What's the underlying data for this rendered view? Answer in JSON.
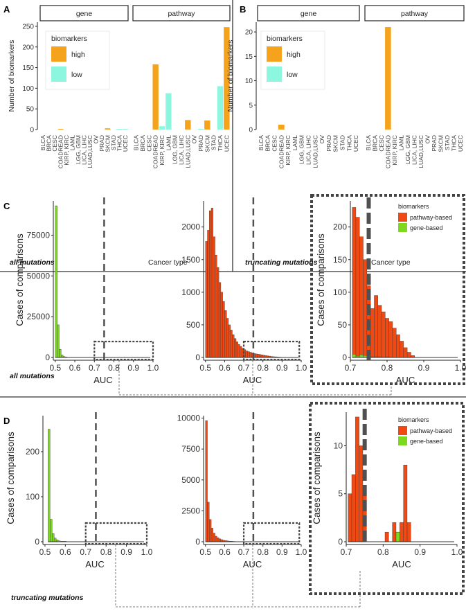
{
  "colors": {
    "high": "#f5a31c",
    "low": "#8cf7de",
    "pathway": "#ef4a14",
    "gene": "#7dd81f",
    "dash": "#505050",
    "axis": "#222222"
  },
  "chart_data": [
    {
      "id": "A",
      "type": "bar",
      "panel_letter": "A",
      "caption": "all mutations",
      "xlabel": "Cancer type",
      "ylabel": "Number of biomarkers",
      "ylim": [
        0,
        260
      ],
      "yticks": [
        0,
        50,
        100,
        150,
        200,
        250
      ],
      "facets": [
        "gene",
        "pathway"
      ],
      "categories": [
        "BLCA",
        "BRCA",
        "CESC",
        "COADREAD",
        "KIRP, KIRC",
        "LAML",
        "LGG, GBM",
        "LICA, LIHC",
        "LUAD,LUSC",
        "OV",
        "PRAD",
        "SKCM",
        "STAD",
        "THCA",
        "UCEC"
      ],
      "legend": {
        "title": "biomarkers",
        "entries": [
          "high",
          "low"
        ]
      },
      "series": [
        {
          "name": "high",
          "facet": "gene",
          "values": [
            0,
            0,
            0,
            1,
            0,
            0,
            0,
            0,
            0,
            0,
            0,
            3,
            0,
            1,
            1
          ]
        },
        {
          "name": "low",
          "facet": "gene",
          "values": [
            0,
            0,
            0,
            0,
            0,
            0,
            0,
            0,
            0,
            0,
            0,
            0,
            0,
            1,
            1
          ]
        },
        {
          "name": "high",
          "facet": "pathway",
          "values": [
            0,
            0,
            0,
            158,
            0,
            0,
            0,
            0,
            23,
            0,
            0,
            22,
            0,
            0,
            248
          ]
        },
        {
          "name": "low",
          "facet": "pathway",
          "values": [
            0,
            0,
            0,
            0,
            8,
            88,
            0,
            0,
            0,
            0,
            1,
            0,
            0,
            105,
            0
          ]
        }
      ]
    },
    {
      "id": "B",
      "type": "bar",
      "panel_letter": "B",
      "caption": "truncating mutations",
      "xlabel": "Cancer type",
      "ylabel": "Number of biomarkers",
      "ylim": [
        0,
        22
      ],
      "yticks": [
        0,
        5,
        10,
        15,
        20
      ],
      "facets": [
        "gene",
        "pathway"
      ],
      "categories": [
        "BLCA",
        "BRCA",
        "CESC",
        "COADREAD",
        "KIRP, KIRC",
        "LAML",
        "LGG, GBM",
        "LICA, LIHC",
        "LUAD,LUSC",
        "OV",
        "PRAD",
        "SKCM",
        "STAD",
        "THCA",
        "UCEC"
      ],
      "legend": {
        "title": "biomarkers",
        "entries": [
          "high",
          "low"
        ]
      },
      "series": [
        {
          "name": "high",
          "facet": "gene",
          "values": [
            0,
            0,
            0,
            1,
            0,
            0,
            0,
            0,
            0,
            0,
            0,
            0,
            0,
            0,
            0
          ]
        },
        {
          "name": "low",
          "facet": "gene",
          "values": [
            0,
            0,
            0,
            0,
            0,
            0,
            0,
            0,
            0,
            0,
            0,
            0,
            0,
            0,
            0
          ]
        },
        {
          "name": "high",
          "facet": "pathway",
          "values": [
            0,
            0,
            0,
            21,
            0,
            0,
            0,
            0,
            0,
            0,
            0,
            0,
            0,
            0,
            0
          ]
        },
        {
          "name": "low",
          "facet": "pathway",
          "values": [
            0,
            0,
            0,
            0,
            0,
            0,
            0,
            0,
            0,
            0,
            0,
            0,
            0,
            0,
            0
          ]
        }
      ]
    },
    {
      "id": "C1",
      "type": "bar",
      "panel_letter": "C",
      "caption": "all mutations",
      "series_name": "gene",
      "xlabel": "AUC",
      "ylabel": "Cases of comparisons",
      "xlim": [
        0.49,
        1.0
      ],
      "ylim": [
        0,
        96000
      ],
      "xticks": [
        "0.5",
        "0.6",
        "0.7",
        "0.8",
        "0.9",
        "1.0"
      ],
      "yticks": [
        0,
        25000,
        50000,
        75000
      ],
      "cutoff": 0.75,
      "zoom_box": [
        0.7,
        1.0
      ],
      "bin_start": 0.5,
      "bin_width": 0.01,
      "values": [
        93000,
        20000,
        5000,
        1500,
        600,
        250,
        120,
        60,
        30,
        15
      ]
    },
    {
      "id": "C2",
      "type": "bar",
      "series_name": "pathway",
      "xlabel": "AUC",
      "ylabel": "",
      "xlim": [
        0.49,
        1.0
      ],
      "ylim": [
        0,
        2400
      ],
      "xticks": [
        "0.5",
        "0.6",
        "0.7",
        "0.8",
        "0.9",
        "1.0"
      ],
      "yticks": [
        0,
        500,
        1000,
        1500,
        2000
      ],
      "cutoff": 0.75,
      "zoom_box": [
        0.7,
        0.99
      ],
      "bin_start": 0.5,
      "bin_width": 0.01,
      "values": [
        1780,
        1950,
        2250,
        2290,
        1850,
        1570,
        1380,
        1150,
        1000,
        860,
        720,
        600,
        500,
        420,
        350,
        290,
        240,
        200,
        170,
        140,
        120,
        100,
        90,
        80,
        70,
        60,
        55,
        50,
        45,
        40,
        35,
        30,
        25,
        20,
        15,
        12,
        10,
        8,
        6,
        4
      ]
    },
    {
      "id": "C3",
      "type": "bar",
      "xlabel": "AUC",
      "ylabel": "Cases of comparisons",
      "xlim": [
        0.7,
        1.0
      ],
      "ylim": [
        0,
        240
      ],
      "xticks": [
        "0.7",
        "0.8",
        "0.9",
        "1.0"
      ],
      "yticks": [
        0,
        50,
        100,
        150,
        200
      ],
      "cutoff": 0.75,
      "legend": {
        "title": "biomarkers",
        "entries": [
          "pathway-based",
          "gene-based"
        ]
      },
      "bin_start": 0.705,
      "bin_width": 0.01,
      "series": [
        {
          "name": "pathway-based",
          "values": [
            230,
            215,
            185,
            150,
            110,
            75,
            95,
            80,
            70,
            60,
            55,
            45,
            35,
            25,
            15,
            8,
            3
          ]
        },
        {
          "name": "gene-based",
          "values": [
            5,
            2,
            4,
            3,
            0,
            1,
            1,
            1,
            0,
            1,
            0,
            0,
            0,
            0,
            0,
            0,
            0
          ]
        }
      ]
    },
    {
      "id": "D1",
      "type": "bar",
      "panel_letter": "D",
      "caption": "truncating mutations",
      "series_name": "gene",
      "xlabel": "AUC",
      "ylabel": "Cases of comparisons",
      "xlim": [
        0.49,
        1.0
      ],
      "ylim": [
        0,
        280
      ],
      "xticks": [
        "0.5",
        "0.6",
        "0.7",
        "0.8",
        "0.9",
        "1.0"
      ],
      "yticks": [
        0,
        100,
        200
      ],
      "cutoff": 0.75,
      "zoom_box": [
        0.7,
        1.0
      ],
      "bin_start": 0.515,
      "bin_width": 0.01,
      "values": [
        250,
        50,
        18,
        8,
        4,
        2,
        1,
        1,
        1
      ]
    },
    {
      "id": "D2",
      "type": "bar",
      "series_name": "pathway",
      "xlabel": "AUC",
      "ylabel": "",
      "xlim": [
        0.49,
        1.0
      ],
      "ylim": [
        0,
        10200
      ],
      "xticks": [
        "0.5",
        "0.6",
        "0.7",
        "0.8",
        "0.9",
        "1.0"
      ],
      "yticks": [
        0,
        2500,
        5000,
        7500,
        10000
      ],
      "cutoff": 0.75,
      "zoom_box": [
        0.7,
        0.99
      ],
      "bin_start": 0.5,
      "bin_width": 0.01,
      "values": [
        9800,
        3200,
        1800,
        1100,
        700,
        450,
        320,
        230,
        170,
        120,
        90,
        70,
        50,
        40,
        30,
        20,
        15,
        10,
        8,
        6,
        4,
        3
      ]
    },
    {
      "id": "D3",
      "type": "bar",
      "xlabel": "AUC",
      "ylabel": "Cases of comparisons",
      "xlim": [
        0.7,
        1.0
      ],
      "ylim": [
        0,
        13.5
      ],
      "xticks": [
        "0.7",
        "0.8",
        "0.9",
        "1.0"
      ],
      "yticks": [
        0,
        5,
        10
      ],
      "cutoff": 0.75,
      "legend": {
        "title": "biomarkers",
        "entries": [
          "pathway-based",
          "gene-based"
        ]
      },
      "bin_start": 0.705,
      "bin_width": 0.01,
      "series": [
        {
          "name": "pathway-based",
          "values": [
            5,
            7,
            13,
            10,
            5,
            0,
            0,
            0,
            0,
            0,
            1,
            0,
            2,
            1,
            2,
            8,
            2
          ]
        },
        {
          "name": "gene-based",
          "values": [
            0,
            0,
            0,
            0,
            0,
            0,
            0,
            0,
            0,
            0,
            0,
            0,
            0,
            1,
            0,
            0,
            0
          ]
        }
      ]
    }
  ]
}
